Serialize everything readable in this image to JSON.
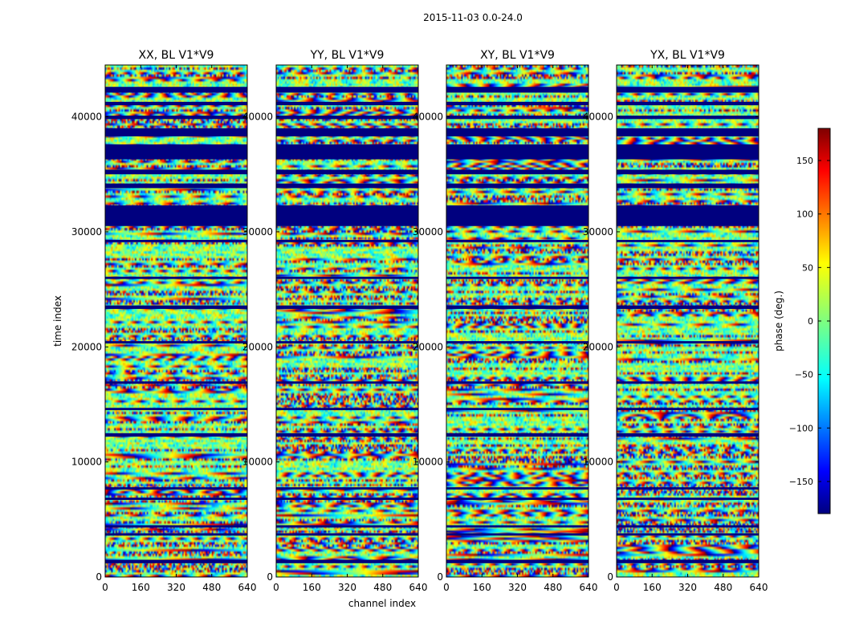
{
  "figure": {
    "suptitle": "2015-11-03 0.0-24.0",
    "colorbar_label": "phase (deg.)"
  },
  "chart_data": {
    "type": "heatmap",
    "xlabel": "channel index",
    "ylabel": "time index",
    "xlim": [
      0,
      640
    ],
    "ylim": [
      0,
      44500
    ],
    "x_ticks": [
      "0",
      "160",
      "320",
      "480",
      "640"
    ],
    "y_ticks": [
      "0",
      "10000",
      "20000",
      "30000",
      "40000"
    ],
    "panels": [
      {
        "title": "XX, BL V1*V9"
      },
      {
        "title": "YY, BL V1*V9"
      },
      {
        "title": "XY, BL V1*V9"
      },
      {
        "title": "YX, BL V1*V9"
      }
    ],
    "colorbar": {
      "range": [
        -180,
        180
      ],
      "ticks": [
        "150",
        "100",
        "50",
        "0",
        "−50",
        "−100",
        "−150"
      ],
      "tick_values": [
        150,
        100,
        50,
        0,
        -50,
        -100,
        -150
      ],
      "colormap": "jet"
    },
    "flagged_rows_time": [
      [
        1200,
        1500
      ],
      [
        3600,
        3800
      ],
      [
        4300,
        4500
      ],
      [
        6700,
        6900
      ],
      [
        7600,
        7800
      ],
      [
        12200,
        12500
      ],
      [
        14500,
        14700
      ],
      [
        16800,
        17000
      ],
      [
        20300,
        20500
      ],
      [
        23300,
        23600
      ],
      [
        25900,
        26100
      ],
      [
        29100,
        29300
      ],
      [
        30500,
        32300
      ],
      [
        33800,
        34200
      ],
      [
        35000,
        35400
      ],
      [
        36300,
        37600
      ],
      [
        38300,
        39000
      ],
      [
        39800,
        40100
      ],
      [
        41000,
        41300
      ],
      [
        42100,
        42600
      ]
    ]
  }
}
